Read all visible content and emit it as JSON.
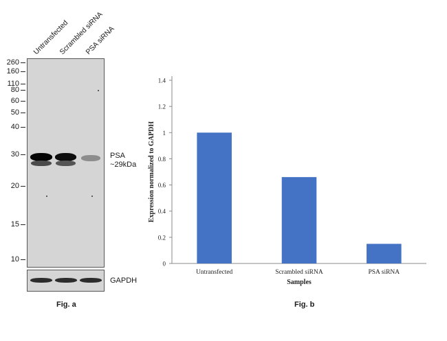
{
  "fig_a": {
    "lanes": [
      "Untransfected",
      "Scrambled siRNA",
      "PSA siRNA"
    ],
    "mw_markers": [
      "260",
      "160",
      "110",
      "80",
      "60",
      "50",
      "40",
      "30",
      "20",
      "15",
      "10"
    ],
    "band_label_line1": "PSA",
    "band_label_line2": "~29kDa",
    "loading_control_label": "GAPDH",
    "caption": "Fig. a"
  },
  "fig_b": {
    "caption": "Fig. b"
  },
  "chart_data": {
    "type": "bar",
    "categories": [
      "Untransfected",
      "Scrambled siRNA",
      "PSA siRNA"
    ],
    "values": [
      1.0,
      0.66,
      0.15
    ],
    "title": "",
    "xlabel": "Samples",
    "ylabel": "Expression normalized to GAPDH",
    "ylim": [
      0,
      1.4
    ],
    "yticks": [
      "0",
      "0.2",
      "0.4",
      "0.6",
      "0.8",
      "1",
      "1.2",
      "1.4"
    ],
    "bar_color": "#4472c4",
    "grid": false
  }
}
